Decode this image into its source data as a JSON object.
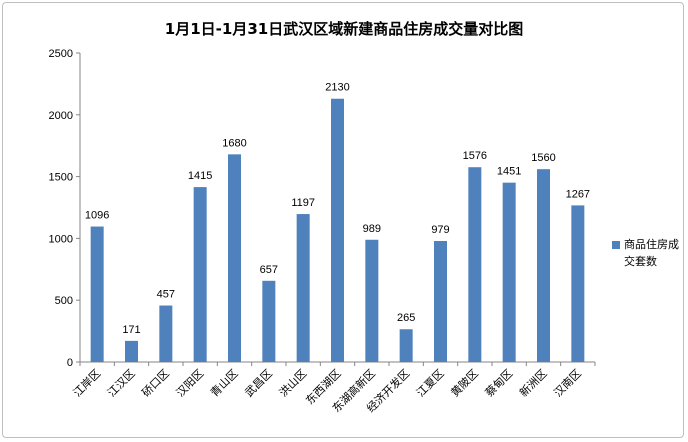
{
  "chart_data": {
    "type": "bar",
    "title": "1月1日-1月31日武汉区域新建商品住房成交量对比图",
    "categories": [
      "江岸区",
      "江汉区",
      "硚口区",
      "汉阳区",
      "青山区",
      "武昌区",
      "洪山区",
      "东西湖区",
      "东湖高新区",
      "经济开发区",
      "江夏区",
      "黄陂区",
      "蔡甸区",
      "新洲区",
      "汉南区"
    ],
    "series": [
      {
        "name": "商品住房成交套数",
        "values": [
          1096,
          171,
          457,
          1415,
          1680,
          657,
          1197,
          2130,
          989,
          265,
          979,
          1576,
          1451,
          1560,
          1267
        ]
      }
    ],
    "ylim": [
      0,
      2500
    ],
    "yticks": [
      0,
      500,
      1000,
      1500,
      2000,
      2500
    ],
    "grid": false,
    "legend": "right",
    "colors": {
      "bar": "#4f81bd",
      "axis": "#868686"
    }
  }
}
